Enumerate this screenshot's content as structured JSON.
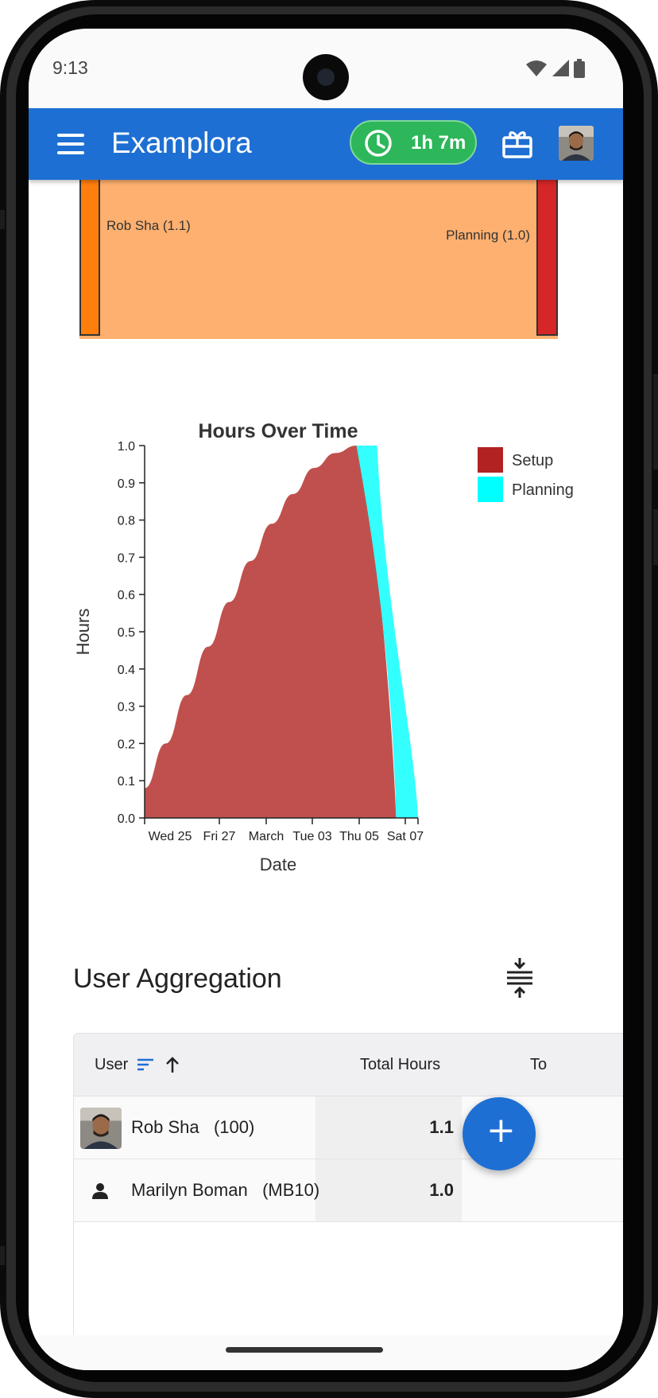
{
  "status_bar": {
    "time": "9:13"
  },
  "app_bar": {
    "title": "Examplora",
    "timer": "1h 7m",
    "icons": [
      "menu-icon",
      "clock-icon",
      "gift-icon",
      "avatar"
    ]
  },
  "sankey": {
    "left_label": "Rob Sha (1.1)",
    "right_label": "Planning (1.0)",
    "colors": {
      "left_node": "#ff7f0e",
      "link": "#fdb06f",
      "right_node": "#d62728"
    }
  },
  "chart_data": {
    "type": "area",
    "title": "Hours Over Time",
    "xlabel": "Date",
    "ylabel": "Hours",
    "ylim": [
      0,
      1.0
    ],
    "yticks": [
      "0.0",
      "0.1",
      "0.2",
      "0.3",
      "0.4",
      "0.5",
      "0.6",
      "0.7",
      "0.8",
      "0.9",
      "1.0"
    ],
    "xticks": [
      "Wed 25",
      "Fri 27",
      "March",
      "Tue 03",
      "Thu 05",
      "Sat 07"
    ],
    "legend_position": "top-right",
    "series": [
      {
        "name": "Setup",
        "color": "#c0504d",
        "legend_color": "#b22222",
        "x": [
          "Tue 24",
          "Wed 25",
          "Thu 26",
          "Fri 27",
          "Sat 28",
          "Sun 01",
          "Mon 02",
          "Tue 03",
          "Wed 04",
          "Thu 05",
          "Fri 06",
          "Sat 07",
          "Sun 08"
        ],
        "values": [
          0.08,
          0.2,
          0.33,
          0.46,
          0.58,
          0.69,
          0.79,
          0.87,
          0.94,
          0.98,
          1.0,
          0.0,
          0.0
        ]
      },
      {
        "name": "Planning",
        "color": "#33ffff",
        "legend_color": "#00ffff",
        "x": [
          "Sat 07",
          "Sun 08"
        ],
        "values": [
          1.0,
          0.0
        ]
      }
    ]
  },
  "user_aggregation": {
    "title": "User Aggregation",
    "columns": [
      "User",
      "Total Hours",
      "To"
    ],
    "rows": [
      {
        "name": "Rob Sha",
        "code": "(100)",
        "hours": "1.1",
        "avatar": "photo"
      },
      {
        "name": "Marilyn Boman",
        "code": "(MB10)",
        "hours": "1.0",
        "avatar": "person-icon"
      }
    ]
  },
  "fab": {
    "label": "+"
  }
}
